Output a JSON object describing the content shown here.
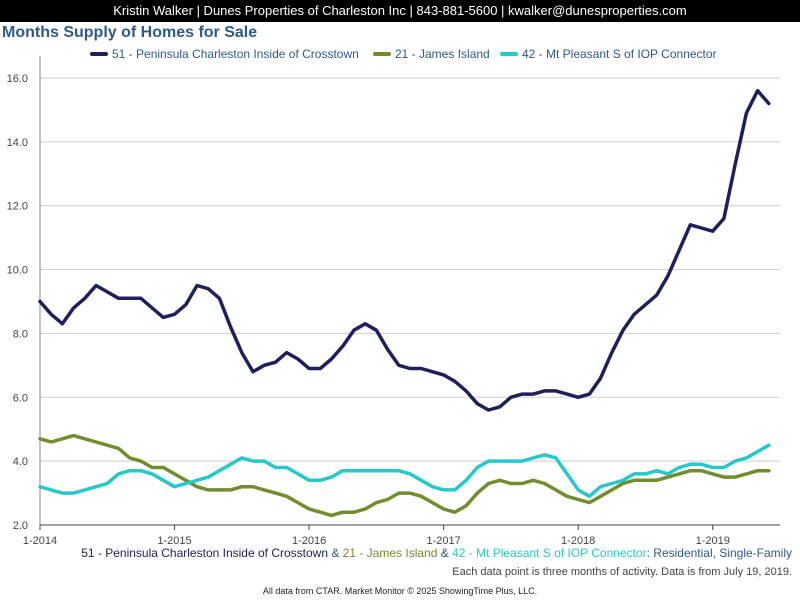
{
  "header": {
    "contact": "Kristin Walker | Dunes Properties of Charleston Inc | 843-881-5600 | kwalker@dunesproperties.com"
  },
  "chart_data": {
    "type": "line",
    "title": "Months Supply of Homes for Sale",
    "xlabel": "",
    "ylabel": "",
    "ylim": [
      2.0,
      16.5
    ],
    "xlim": [
      "2014-01",
      "2019-07"
    ],
    "yticks": [
      "2.0",
      "4.0",
      "6.0",
      "8.0",
      "10.0",
      "12.0",
      "14.0",
      "16.0"
    ],
    "xticks": [
      "1-2014",
      "1-2015",
      "1-2016",
      "1-2017",
      "1-2018",
      "1-2019"
    ],
    "legend_position": "top",
    "grid": "horizontal",
    "x": [
      "2014-01",
      "2014-02",
      "2014-03",
      "2014-04",
      "2014-05",
      "2014-06",
      "2014-07",
      "2014-08",
      "2014-09",
      "2014-10",
      "2014-11",
      "2014-12",
      "2015-01",
      "2015-02",
      "2015-03",
      "2015-04",
      "2015-05",
      "2015-06",
      "2015-07",
      "2015-08",
      "2015-09",
      "2015-10",
      "2015-11",
      "2015-12",
      "2016-01",
      "2016-02",
      "2016-03",
      "2016-04",
      "2016-05",
      "2016-06",
      "2016-07",
      "2016-08",
      "2016-09",
      "2016-10",
      "2016-11",
      "2016-12",
      "2017-01",
      "2017-02",
      "2017-03",
      "2017-04",
      "2017-05",
      "2017-06",
      "2017-07",
      "2017-08",
      "2017-09",
      "2017-10",
      "2017-11",
      "2017-12",
      "2018-01",
      "2018-02",
      "2018-03",
      "2018-04",
      "2018-05",
      "2018-06",
      "2018-07",
      "2018-08",
      "2018-09",
      "2018-10",
      "2018-11",
      "2018-12",
      "2019-01",
      "2019-02",
      "2019-03",
      "2019-04",
      "2019-05",
      "2019-06"
    ],
    "series": [
      {
        "name": "51 - Peninsula Charleston Inside of Crosstown",
        "color": "#1f1f5c",
        "values": [
          9.0,
          8.6,
          8.3,
          8.8,
          9.1,
          9.5,
          9.3,
          9.1,
          9.1,
          9.1,
          8.8,
          8.5,
          8.6,
          8.9,
          9.5,
          9.4,
          9.1,
          8.2,
          7.4,
          6.8,
          7.0,
          7.1,
          7.4,
          7.2,
          6.9,
          6.9,
          7.2,
          7.6,
          8.1,
          8.3,
          8.1,
          7.5,
          7.0,
          6.9,
          6.9,
          6.8,
          6.7,
          6.5,
          6.2,
          5.8,
          5.6,
          5.7,
          6.0,
          6.1,
          6.1,
          6.2,
          6.2,
          6.1,
          6.0,
          6.1,
          6.6,
          7.4,
          8.1,
          8.6,
          8.9,
          9.2,
          9.8,
          10.6,
          11.4,
          11.3,
          11.2,
          11.6,
          13.3,
          14.9,
          15.6,
          15.2
        ]
      },
      {
        "name": "21 - James Island",
        "color": "#738c2e",
        "values": [
          4.7,
          4.6,
          4.7,
          4.8,
          4.7,
          4.6,
          4.5,
          4.4,
          4.1,
          4.0,
          3.8,
          3.8,
          3.6,
          3.4,
          3.2,
          3.1,
          3.1,
          3.1,
          3.2,
          3.2,
          3.1,
          3.0,
          2.9,
          2.7,
          2.5,
          2.4,
          2.3,
          2.4,
          2.4,
          2.5,
          2.7,
          2.8,
          3.0,
          3.0,
          2.9,
          2.7,
          2.5,
          2.4,
          2.6,
          3.0,
          3.3,
          3.4,
          3.3,
          3.3,
          3.4,
          3.3,
          3.1,
          2.9,
          2.8,
          2.7,
          2.9,
          3.1,
          3.3,
          3.4,
          3.4,
          3.4,
          3.5,
          3.6,
          3.7,
          3.7,
          3.6,
          3.5,
          3.5,
          3.6,
          3.7,
          3.7
        ]
      },
      {
        "name": "42 - Mt Pleasant S of IOP Connector",
        "color": "#26c9c9",
        "values": [
          3.2,
          3.1,
          3.0,
          3.0,
          3.1,
          3.2,
          3.3,
          3.6,
          3.7,
          3.7,
          3.6,
          3.4,
          3.2,
          3.3,
          3.4,
          3.5,
          3.7,
          3.9,
          4.1,
          4.0,
          4.0,
          3.8,
          3.8,
          3.6,
          3.4,
          3.4,
          3.5,
          3.7,
          3.7,
          3.7,
          3.7,
          3.7,
          3.7,
          3.6,
          3.4,
          3.2,
          3.1,
          3.1,
          3.4,
          3.8,
          4.0,
          4.0,
          4.0,
          4.0,
          4.1,
          4.2,
          4.1,
          3.6,
          3.1,
          2.9,
          3.2,
          3.3,
          3.4,
          3.6,
          3.6,
          3.7,
          3.6,
          3.8,
          3.9,
          3.9,
          3.8,
          3.8,
          4.0,
          4.1,
          4.3,
          4.5
        ]
      }
    ]
  },
  "caption": {
    "series_1": "51 - Peninsula Charleston Inside of Crosstown",
    "joiner_1": " & ",
    "series_2": "21 - James Island",
    "joiner_2": " & ",
    "series_3": "42 - Mt Pleasant S of IOP Connector",
    "suffix": ": Residential, Single-Family",
    "note": "Each data point is three months of activity. Data is from July 19, 2019.",
    "source": "All data from CTAR. Market Monitor © 2025 ShowingTime Plus, LLC."
  }
}
